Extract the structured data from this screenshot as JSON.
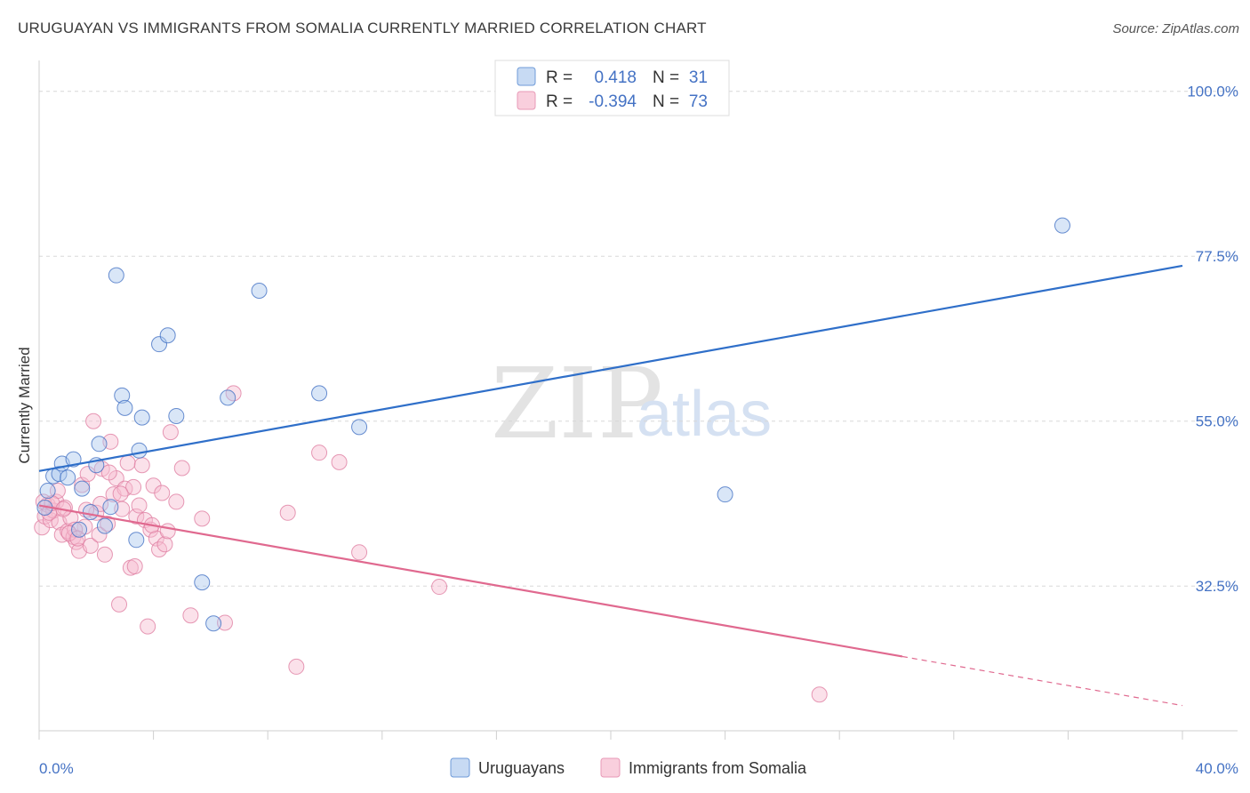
{
  "title": "URUGUAYAN VS IMMIGRANTS FROM SOMALIA CURRENTLY MARRIED CORRELATION CHART",
  "source": "Source: ZipAtlas.com",
  "watermark": {
    "zip": "ZIP",
    "atlas": "atlas"
  },
  "colors": {
    "blue": "#4472c4",
    "blue_fill": "#aac8ee",
    "blue_line": "#2f6fc9",
    "pink": "#e07fa3",
    "pink_fill": "#f6bcd0",
    "pink_line": "#e0698f"
  },
  "legend": {
    "r_label": "R =",
    "n_label": "N =",
    "blue_r": "0.418",
    "blue_n": "31",
    "pink_r": "-0.394",
    "pink_n": "73"
  },
  "bottom_legend": {
    "series1": "Uruguayans",
    "series2": "Immigrants from Somalia"
  },
  "chart_data": {
    "type": "scatter",
    "title": "URUGUAYAN VS IMMIGRANTS FROM SOMALIA CURRENTLY MARRIED CORRELATION CHART",
    "xlabel": "",
    "ylabel": "Currently Married",
    "xlim": [
      0,
      40
    ],
    "ylim": [
      13,
      103
    ],
    "x_tick_labels": [
      "0.0%",
      "40.0%"
    ],
    "y_ticks": [
      32.5,
      55.0,
      77.5,
      100.0
    ],
    "y_tick_labels": [
      "32.5%",
      "55.0%",
      "77.5%",
      "100.0%"
    ],
    "grid": true,
    "legend_position": "top-center",
    "series": [
      {
        "name": "Uruguayans",
        "r": 0.418,
        "n": 31,
        "trend": {
          "x0": 0,
          "y0": 48.2,
          "x1": 40,
          "y1": 76.2,
          "dashed_from": null
        },
        "points": [
          [
            0.3,
            45.5
          ],
          [
            0.5,
            47.5
          ],
          [
            0.7,
            47.8
          ],
          [
            0.8,
            49.2
          ],
          [
            1.0,
            47.3
          ],
          [
            1.2,
            49.8
          ],
          [
            1.4,
            40.2
          ],
          [
            1.5,
            45.8
          ],
          [
            1.8,
            42.6
          ],
          [
            2.0,
            49.0
          ],
          [
            2.1,
            51.9
          ],
          [
            2.3,
            40.7
          ],
          [
            2.5,
            43.3
          ],
          [
            2.7,
            74.9
          ],
          [
            2.9,
            58.5
          ],
          [
            3.0,
            56.8
          ],
          [
            3.4,
            38.8
          ],
          [
            3.5,
            51.0
          ],
          [
            3.6,
            55.5
          ],
          [
            4.2,
            65.5
          ],
          [
            4.5,
            66.7
          ],
          [
            4.8,
            55.7
          ],
          [
            5.7,
            33.0
          ],
          [
            6.1,
            27.4
          ],
          [
            6.6,
            58.2
          ],
          [
            7.7,
            72.8
          ],
          [
            9.8,
            58.8
          ],
          [
            11.2,
            54.2
          ],
          [
            24.0,
            45.0
          ],
          [
            35.8,
            81.7
          ],
          [
            0.2,
            43.2
          ]
        ]
      },
      {
        "name": "Immigrants from Somalia",
        "r": -0.394,
        "n": 73,
        "trend": {
          "x0": 0,
          "y0": 43.5,
          "x1": 40,
          "y1": 16.2,
          "dashed_from": 30.2
        },
        "points": [
          [
            0.1,
            40.5
          ],
          [
            0.2,
            42.0
          ],
          [
            0.3,
            43.6
          ],
          [
            0.4,
            41.5
          ],
          [
            0.5,
            42.8
          ],
          [
            0.6,
            44.0
          ],
          [
            0.7,
            41.2
          ],
          [
            0.8,
            39.5
          ],
          [
            0.9,
            43.2
          ],
          [
            1.0,
            40.0
          ],
          [
            1.1,
            41.8
          ],
          [
            1.2,
            39.2
          ],
          [
            1.3,
            38.5
          ],
          [
            1.4,
            37.3
          ],
          [
            1.5,
            46.3
          ],
          [
            1.6,
            40.6
          ],
          [
            1.7,
            47.8
          ],
          [
            1.8,
            38.0
          ],
          [
            1.9,
            55.0
          ],
          [
            2.0,
            42.5
          ],
          [
            2.1,
            39.5
          ],
          [
            2.2,
            48.5
          ],
          [
            2.3,
            36.8
          ],
          [
            2.4,
            41.0
          ],
          [
            2.5,
            52.2
          ],
          [
            2.6,
            45.0
          ],
          [
            2.7,
            47.2
          ],
          [
            2.8,
            30.0
          ],
          [
            2.9,
            43.0
          ],
          [
            3.0,
            45.8
          ],
          [
            3.1,
            49.3
          ],
          [
            3.2,
            35.0
          ],
          [
            3.3,
            46.0
          ],
          [
            3.4,
            42.0
          ],
          [
            3.5,
            43.5
          ],
          [
            3.6,
            49.0
          ],
          [
            3.7,
            41.5
          ],
          [
            3.8,
            27.0
          ],
          [
            3.9,
            40.2
          ],
          [
            4.0,
            46.2
          ],
          [
            4.1,
            39.0
          ],
          [
            4.2,
            37.5
          ],
          [
            4.3,
            45.2
          ],
          [
            4.4,
            38.2
          ],
          [
            4.5,
            40.0
          ],
          [
            4.6,
            53.5
          ],
          [
            4.8,
            44.0
          ],
          [
            5.0,
            48.6
          ],
          [
            5.3,
            28.5
          ],
          [
            5.7,
            41.7
          ],
          [
            6.5,
            27.5
          ],
          [
            6.8,
            58.8
          ],
          [
            8.7,
            42.5
          ],
          [
            9.0,
            21.5
          ],
          [
            9.8,
            50.7
          ],
          [
            10.5,
            49.4
          ],
          [
            11.2,
            37.1
          ],
          [
            14.0,
            32.4
          ],
          [
            27.3,
            17.7
          ],
          [
            0.15,
            44.0
          ],
          [
            0.35,
            42.5
          ],
          [
            0.65,
            45.5
          ],
          [
            1.25,
            40.2
          ],
          [
            2.15,
            43.7
          ],
          [
            2.85,
            45.1
          ],
          [
            3.35,
            35.2
          ],
          [
            3.95,
            40.8
          ],
          [
            0.45,
            43.8
          ],
          [
            1.05,
            39.7
          ],
          [
            1.65,
            42.9
          ],
          [
            2.45,
            48.0
          ],
          [
            0.85,
            43.0
          ],
          [
            1.35,
            39.0
          ]
        ]
      }
    ]
  }
}
